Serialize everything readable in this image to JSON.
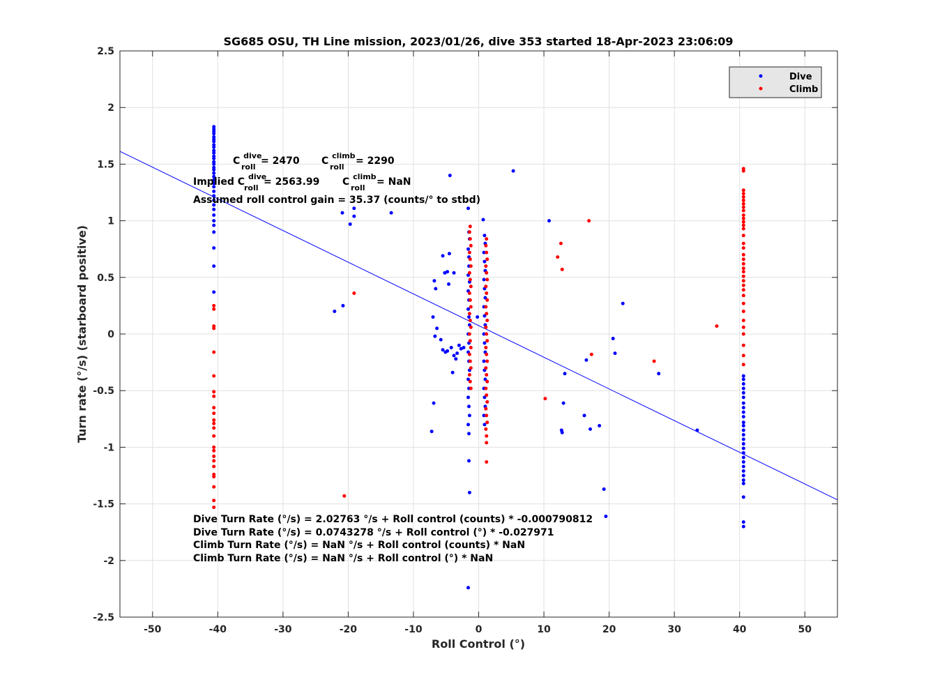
{
  "chart_data": {
    "type": "scatter",
    "title": "SG685 OSU, TH Line mission, 2023/01/26, dive 353 started 18-Apr-2023 23:06:09",
    "xlabel": "Roll Control (°)",
    "ylabel": "Turn rate (°/s) (starboard positive)",
    "xlim": [
      -55,
      55
    ],
    "ylim": [
      -2.5,
      2.5
    ],
    "xticks": [
      -50,
      -40,
      -30,
      -20,
      -10,
      0,
      10,
      20,
      30,
      40,
      50
    ],
    "xtick_labels": [
      "-50",
      "-40",
      "-30",
      "-20",
      "-10",
      "0",
      "10",
      "20",
      "30",
      "40",
      "50"
    ],
    "yticks": [
      2.5,
      2,
      1.5,
      1,
      0.5,
      0,
      -0.5,
      -1,
      -1.5,
      -2,
      -2.5
    ],
    "ytick_labels": [
      "2.5",
      "2",
      "1.5",
      "1",
      "0.5",
      "0",
      "-0.5",
      "-1",
      "-1.5",
      "-2",
      "-2.5"
    ],
    "grid": true,
    "legend_position": "top-right",
    "colors": {
      "dive": "#0000ff",
      "climb": "#ff0000",
      "fit": "#0000ff",
      "legend_bg": "#e6e6e6"
    },
    "fit_line": {
      "intercept": 0.0743278,
      "slope": -0.027971
    },
    "series": [
      {
        "name": "Dive",
        "color": "#0000ff",
        "points": [
          [
            -40.6,
            1.83
          ],
          [
            -40.6,
            1.81
          ],
          [
            -40.6,
            1.79
          ],
          [
            -40.6,
            1.77
          ],
          [
            -40.6,
            1.74
          ],
          [
            -40.6,
            1.72
          ],
          [
            -40.6,
            1.7
          ],
          [
            -40.6,
            1.67
          ],
          [
            -40.6,
            1.65
          ],
          [
            -40.6,
            1.62
          ],
          [
            -40.6,
            1.6
          ],
          [
            -40.6,
            1.57
          ],
          [
            -40.6,
            1.55
          ],
          [
            -40.6,
            1.52
          ],
          [
            -40.6,
            1.5
          ],
          [
            -40.6,
            1.47
          ],
          [
            -40.6,
            1.45
          ],
          [
            -40.6,
            1.42
          ],
          [
            -40.6,
            1.39
          ],
          [
            -40.6,
            1.36
          ],
          [
            -40.6,
            1.33
          ],
          [
            -40.6,
            1.3
          ],
          [
            -40.6,
            1.26
          ],
          [
            -40.6,
            1.22
          ],
          [
            -40.6,
            1.18
          ],
          [
            -40.6,
            1.14
          ],
          [
            -40.6,
            1.1
          ],
          [
            -40.6,
            1.05
          ],
          [
            -40.6,
            1.0
          ],
          [
            -40.6,
            0.96
          ],
          [
            -40.6,
            0.9
          ],
          [
            -40.6,
            0.76
          ],
          [
            -40.6,
            0.6
          ],
          [
            -40.6,
            0.37
          ],
          [
            -4.4,
            1.4
          ],
          [
            -4.5,
            0.71
          ],
          [
            -5.5,
            0.69
          ],
          [
            -4.8,
            0.55
          ],
          [
            -3.8,
            0.54
          ],
          [
            -5.2,
            0.54
          ],
          [
            -6.8,
            0.47
          ],
          [
            -4.6,
            0.44
          ],
          [
            -6.6,
            0.4
          ],
          [
            -7.0,
            0.15
          ],
          [
            -6.4,
            0.05
          ],
          [
            -6.7,
            -0.02
          ],
          [
            -5.8,
            -0.05
          ],
          [
            -5.5,
            -0.14
          ],
          [
            -5.1,
            -0.16
          ],
          [
            -4.8,
            -0.15
          ],
          [
            -4.2,
            -0.12
          ],
          [
            -3.8,
            -0.19
          ],
          [
            -3.5,
            -0.22
          ],
          [
            -3.3,
            -0.17
          ],
          [
            -3.0,
            -0.1
          ],
          [
            -2.7,
            -0.13
          ],
          [
            -2.3,
            -0.12
          ],
          [
            -4.0,
            -0.34
          ],
          [
            -6.9,
            -0.61
          ],
          [
            -7.2,
            -0.86
          ],
          [
            -22.1,
            0.2
          ],
          [
            -20.8,
            0.25
          ],
          [
            -20.9,
            1.07
          ],
          [
            -19.1,
            1.11
          ],
          [
            -19.1,
            1.04
          ],
          [
            -19.7,
            0.97
          ],
          [
            -13.4,
            1.07
          ],
          [
            5.3,
            1.44
          ],
          [
            -1.6,
            1.11
          ],
          [
            -1.5,
            0.9
          ],
          [
            -1.4,
            0.84
          ],
          [
            -1.6,
            0.75
          ],
          [
            -1.5,
            0.68
          ],
          [
            -1.5,
            0.6
          ],
          [
            -1.6,
            0.52
          ],
          [
            -1.4,
            0.46
          ],
          [
            -1.6,
            0.38
          ],
          [
            -1.5,
            0.3
          ],
          [
            -1.6,
            0.22
          ],
          [
            -1.5,
            0.15
          ],
          [
            -1.4,
            0.08
          ],
          [
            -1.6,
            0.0
          ],
          [
            -1.5,
            -0.08
          ],
          [
            -1.6,
            -0.16
          ],
          [
            -1.5,
            -0.24
          ],
          [
            -1.4,
            -0.32
          ],
          [
            -1.6,
            -0.4
          ],
          [
            -1.5,
            -0.48
          ],
          [
            -1.6,
            -0.56
          ],
          [
            -1.5,
            -0.64
          ],
          [
            -1.4,
            -0.72
          ],
          [
            -1.6,
            -0.8
          ],
          [
            -1.5,
            -0.88
          ],
          [
            -1.5,
            -1.12
          ],
          [
            -1.4,
            -1.4
          ],
          [
            -1.6,
            -2.24
          ],
          [
            0.7,
            1.01
          ],
          [
            0.9,
            0.87
          ],
          [
            1.0,
            0.8
          ],
          [
            0.8,
            0.72
          ],
          [
            0.9,
            0.64
          ],
          [
            1.0,
            0.56
          ],
          [
            0.8,
            0.48
          ],
          [
            0.9,
            0.4
          ],
          [
            1.0,
            0.32
          ],
          [
            0.8,
            0.24
          ],
          [
            0.9,
            0.16
          ],
          [
            1.0,
            0.08
          ],
          [
            0.8,
            0.0
          ],
          [
            0.9,
            -0.08
          ],
          [
            1.0,
            -0.16
          ],
          [
            0.8,
            -0.24
          ],
          [
            0.9,
            -0.32
          ],
          [
            1.0,
            -0.4
          ],
          [
            0.8,
            -0.48
          ],
          [
            0.9,
            -0.56
          ],
          [
            1.0,
            -0.64
          ],
          [
            0.8,
            -0.72
          ],
          [
            0.9,
            -0.8
          ],
          [
            -0.2,
            0.15
          ],
          [
            10.8,
            1.0
          ],
          [
            22.1,
            0.27
          ],
          [
            20.6,
            -0.04
          ],
          [
            20.9,
            -0.17
          ],
          [
            16.5,
            -0.23
          ],
          [
            13.2,
            -0.35
          ],
          [
            27.6,
            -0.35
          ],
          [
            13.0,
            -0.61
          ],
          [
            16.2,
            -0.72
          ],
          [
            12.7,
            -0.85
          ],
          [
            12.8,
            -0.87
          ],
          [
            17.1,
            -0.84
          ],
          [
            18.5,
            -0.81
          ],
          [
            19.2,
            -1.37
          ],
          [
            19.5,
            -1.61
          ],
          [
            33.5,
            -0.85
          ],
          [
            40.6,
            -0.37
          ],
          [
            40.6,
            -0.4
          ],
          [
            40.6,
            -0.44
          ],
          [
            40.6,
            -0.48
          ],
          [
            40.6,
            -0.52
          ],
          [
            40.6,
            -0.56
          ],
          [
            40.6,
            -0.61
          ],
          [
            40.6,
            -0.65
          ],
          [
            40.6,
            -0.69
          ],
          [
            40.6,
            -0.73
          ],
          [
            40.6,
            -0.78
          ],
          [
            40.6,
            -0.81
          ],
          [
            40.6,
            -0.85
          ],
          [
            40.6,
            -0.89
          ],
          [
            40.6,
            -0.93
          ],
          [
            40.6,
            -0.97
          ],
          [
            40.6,
            -1.01
          ],
          [
            40.6,
            -1.05
          ],
          [
            40.6,
            -1.09
          ],
          [
            40.6,
            -1.13
          ],
          [
            40.6,
            -1.17
          ],
          [
            40.6,
            -1.21
          ],
          [
            40.6,
            -1.25
          ],
          [
            40.6,
            -1.29
          ],
          [
            40.6,
            -1.32
          ],
          [
            40.6,
            -1.44
          ],
          [
            40.6,
            -1.66
          ],
          [
            40.6,
            -1.7
          ]
        ]
      },
      {
        "name": "Climb",
        "color": "#ff0000",
        "points": [
          [
            -40.6,
            0.25
          ],
          [
            -40.6,
            0.22
          ],
          [
            -40.6,
            0.07
          ],
          [
            -40.6,
            0.05
          ],
          [
            -40.6,
            -0.16
          ],
          [
            -40.6,
            -0.37
          ],
          [
            -40.6,
            -0.51
          ],
          [
            -40.6,
            -0.55
          ],
          [
            -40.6,
            -0.65
          ],
          [
            -40.6,
            -0.7
          ],
          [
            -40.6,
            -0.76
          ],
          [
            -40.6,
            -0.79
          ],
          [
            -40.6,
            -0.83
          ],
          [
            -40.6,
            -0.9
          ],
          [
            -40.6,
            -1.0
          ],
          [
            -40.6,
            -1.03
          ],
          [
            -40.6,
            -1.08
          ],
          [
            -40.6,
            -1.12
          ],
          [
            -40.6,
            -1.17
          ],
          [
            -40.6,
            -1.24
          ],
          [
            -40.6,
            -1.26
          ],
          [
            -40.6,
            -1.35
          ],
          [
            -40.6,
            -1.47
          ],
          [
            -40.6,
            -1.53
          ],
          [
            -19.1,
            0.36
          ],
          [
            -20.6,
            -1.43
          ],
          [
            -1.3,
            0.95
          ],
          [
            -1.4,
            0.9
          ],
          [
            -1.3,
            0.84
          ],
          [
            -1.2,
            0.78
          ],
          [
            -1.4,
            0.72
          ],
          [
            -1.3,
            0.66
          ],
          [
            -1.2,
            0.6
          ],
          [
            -1.4,
            0.54
          ],
          [
            -1.3,
            0.48
          ],
          [
            -1.2,
            0.42
          ],
          [
            -1.4,
            0.36
          ],
          [
            -1.3,
            0.3
          ],
          [
            -1.2,
            0.24
          ],
          [
            -1.4,
            0.18
          ],
          [
            -1.3,
            0.12
          ],
          [
            -1.2,
            0.06
          ],
          [
            -1.4,
            0.0
          ],
          [
            -1.3,
            -0.06
          ],
          [
            -1.2,
            -0.12
          ],
          [
            -1.4,
            -0.18
          ],
          [
            -1.3,
            -0.24
          ],
          [
            -1.2,
            -0.3
          ],
          [
            -1.4,
            -0.36
          ],
          [
            -1.3,
            -0.42
          ],
          [
            -1.2,
            -0.48
          ],
          [
            1.2,
            0.84
          ],
          [
            1.1,
            0.78
          ],
          [
            1.2,
            0.72
          ],
          [
            1.3,
            0.66
          ],
          [
            1.1,
            0.6
          ],
          [
            1.2,
            0.54
          ],
          [
            1.3,
            0.48
          ],
          [
            1.1,
            0.42
          ],
          [
            1.2,
            0.36
          ],
          [
            1.3,
            0.3
          ],
          [
            1.1,
            0.24
          ],
          [
            1.2,
            0.18
          ],
          [
            1.3,
            0.12
          ],
          [
            1.1,
            0.06
          ],
          [
            1.2,
            0.0
          ],
          [
            1.3,
            -0.06
          ],
          [
            1.1,
            -0.12
          ],
          [
            1.2,
            -0.18
          ],
          [
            1.3,
            -0.24
          ],
          [
            1.1,
            -0.3
          ],
          [
            1.2,
            -0.36
          ],
          [
            1.3,
            -0.42
          ],
          [
            1.1,
            -0.48
          ],
          [
            1.2,
            -0.54
          ],
          [
            1.3,
            -0.6
          ],
          [
            1.1,
            -0.66
          ],
          [
            1.2,
            -0.72
          ],
          [
            1.3,
            -0.78
          ],
          [
            1.1,
            -0.84
          ],
          [
            1.2,
            -0.9
          ],
          [
            1.2,
            -0.96
          ],
          [
            1.2,
            -1.13
          ],
          [
            16.9,
            1.0
          ],
          [
            12.6,
            0.8
          ],
          [
            12.1,
            0.68
          ],
          [
            12.8,
            0.57
          ],
          [
            17.3,
            -0.18
          ],
          [
            26.9,
            -0.24
          ],
          [
            36.5,
            0.07
          ],
          [
            10.2,
            -0.57
          ],
          [
            40.6,
            1.46
          ],
          [
            40.6,
            1.44
          ],
          [
            40.6,
            1.27
          ],
          [
            40.6,
            1.24
          ],
          [
            40.6,
            1.21
          ],
          [
            40.6,
            1.18
          ],
          [
            40.6,
            1.15
          ],
          [
            40.6,
            1.12
          ],
          [
            40.6,
            1.09
          ],
          [
            40.6,
            1.05
          ],
          [
            40.6,
            1.02
          ],
          [
            40.6,
            0.99
          ],
          [
            40.6,
            0.96
          ],
          [
            40.6,
            0.93
          ],
          [
            40.6,
            0.87
          ],
          [
            40.6,
            0.8
          ],
          [
            40.6,
            0.76
          ],
          [
            40.6,
            0.7
          ],
          [
            40.6,
            0.66
          ],
          [
            40.6,
            0.62
          ],
          [
            40.6,
            0.58
          ],
          [
            40.6,
            0.55
          ],
          [
            40.6,
            0.51
          ],
          [
            40.6,
            0.47
          ],
          [
            40.6,
            0.43
          ],
          [
            40.6,
            0.39
          ],
          [
            40.6,
            0.34
          ],
          [
            40.6,
            0.27
          ],
          [
            40.6,
            0.2
          ],
          [
            40.6,
            0.12
          ],
          [
            40.6,
            0.06
          ],
          [
            40.6,
            0.0
          ],
          [
            40.6,
            -0.1
          ],
          [
            40.6,
            -0.19
          ],
          [
            40.6,
            -0.27
          ]
        ]
      }
    ],
    "annotations": {
      "c_roll": {
        "dive_prefix": "C",
        "dive_sup": "dive",
        "dive_sub": "roll",
        "dive_value": " = 2470",
        "climb_prefix": "C",
        "climb_sup": "climb",
        "climb_sub": "roll",
        "climb_value": " = 2290"
      },
      "implied": {
        "label": "Implied C",
        "dive_sup": "dive",
        "dive_sub": "roll",
        "dive_value": " = 2563.99",
        "climb_prefix": "C",
        "climb_sup": "climb",
        "climb_sub": "roll",
        "climb_value": " = NaN"
      },
      "gain": "Assumed roll control gain = 35.37 (counts/° to stbd)",
      "equations": [
        "Dive Turn Rate (°/s) = 2.02763 °/s + Roll control (counts) * -0.000790812",
        "Dive Turn Rate (°/s) = 0.0743278 °/s + Roll control (°) * -0.027971",
        "Climb Turn Rate (°/s) = NaN °/s + Roll control (counts) * NaN",
        "Climb Turn Rate (°/s) = NaN °/s + Roll control (°) * NaN"
      ]
    }
  }
}
